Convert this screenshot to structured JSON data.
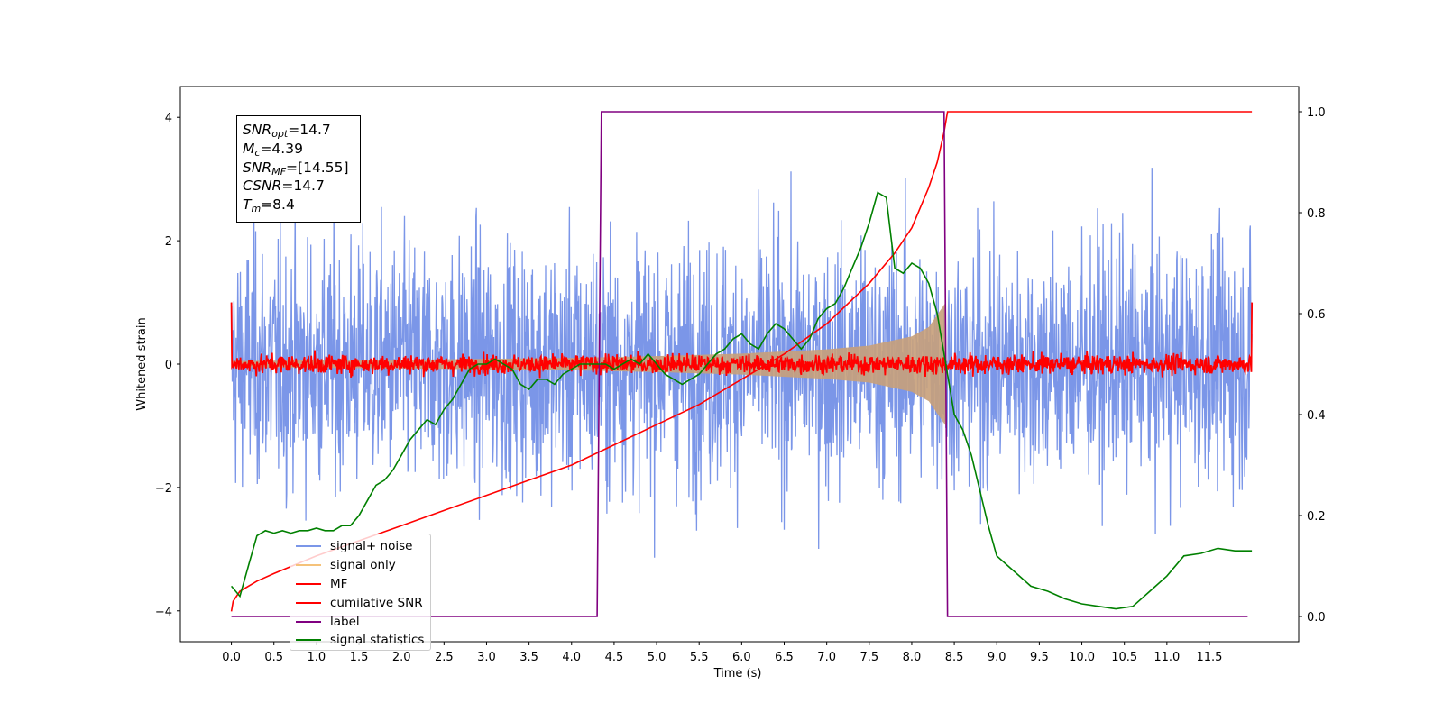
{
  "chart_data": {
    "type": "line",
    "xlabel": "Time (s)",
    "ylabel": "Whitened strain",
    "xlim": [
      -0.6,
      12.55
    ],
    "ylim": [
      -4.5,
      4.5
    ],
    "y2lim": [
      -0.05,
      1.05
    ],
    "xticks": [
      "0.0",
      "0.5",
      "1.0",
      "1.5",
      "2.0",
      "2.5",
      "3.0",
      "3.5",
      "4.0",
      "4.5",
      "5.0",
      "5.5",
      "6.0",
      "6.5",
      "7.0",
      "7.5",
      "8.0",
      "8.5",
      "9.0",
      "9.5",
      "10.0",
      "10.5",
      "11.0",
      "11.5"
    ],
    "yticks": [
      "−4",
      "−2",
      "0",
      "2",
      "4"
    ],
    "y2ticks": [
      "0.0",
      "0.2",
      "0.4",
      "0.6",
      "0.8",
      "1.0"
    ],
    "legend_position": "lower-left",
    "stats_box": {
      "snr_opt": {
        "base": "SNR",
        "sub": "opt",
        "value": "=14.7"
      },
      "mc": {
        "base": "M",
        "sub": "c",
        "value": "=4.39"
      },
      "snr_mf": {
        "base": "SNR",
        "sub": "MF",
        "value": "=[14.55]"
      },
      "csnr": {
        "base": "CSNR",
        "sub": "",
        "value": "=14.7"
      },
      "tm": {
        "base": "T",
        "sub": "m",
        "value": "=8.4"
      }
    },
    "series": [
      {
        "name": "signal+ noise",
        "color": "#7b96e8",
        "axis": "left",
        "description_values": {
          "x_range": [
            0.0,
            12.0
          ],
          "y_spread": 1.0,
          "peak_min": -3.7,
          "peak_max": 3.5
        }
      },
      {
        "name": "signal only",
        "color": "#c8a07a",
        "axis": "left",
        "envelope": {
          "x": [
            0.0,
            2.0,
            4.0,
            5.0,
            6.0,
            7.0,
            7.5,
            8.0,
            8.2,
            8.4
          ],
          "y": [
            0.05,
            0.07,
            0.1,
            0.13,
            0.17,
            0.24,
            0.3,
            0.45,
            0.6,
            1.0
          ]
        }
      },
      {
        "name": "MF",
        "color": "#ff0000",
        "axis": "left",
        "description_values": {
          "x_range": [
            0.0,
            12.0
          ],
          "y_spread": 0.08,
          "edge_value": 1.0
        }
      },
      {
        "name": "cumilative SNR",
        "color": "#ff0000",
        "axis": "right",
        "x": [
          0.0,
          0.02,
          0.1,
          0.3,
          0.5,
          1.0,
          1.5,
          2.0,
          2.5,
          3.0,
          3.5,
          4.0,
          4.5,
          5.0,
          5.5,
          6.0,
          6.5,
          7.0,
          7.5,
          7.8,
          8.0,
          8.1,
          8.2,
          8.3,
          8.38,
          8.42,
          12.0
        ],
        "y": [
          0.01,
          0.03,
          0.05,
          0.07,
          0.085,
          0.12,
          0.15,
          0.18,
          0.21,
          0.24,
          0.27,
          0.3,
          0.34,
          0.38,
          0.42,
          0.47,
          0.52,
          0.58,
          0.66,
          0.72,
          0.77,
          0.81,
          0.85,
          0.9,
          0.96,
          1.0,
          1.0
        ]
      },
      {
        "name": "label",
        "color": "#800080",
        "axis": "right",
        "x": [
          0.0,
          4.3,
          4.35,
          8.38,
          8.42,
          11.95
        ],
        "y": [
          0.0,
          0.0,
          1.0,
          1.0,
          0.0,
          0.0
        ]
      },
      {
        "name": "signal statistics",
        "color": "#008000",
        "axis": "right",
        "x": [
          0.0,
          0.1,
          0.2,
          0.3,
          0.4,
          0.5,
          0.6,
          0.7,
          0.8,
          0.9,
          1.0,
          1.1,
          1.2,
          1.3,
          1.4,
          1.5,
          1.6,
          1.7,
          1.8,
          1.9,
          2.0,
          2.1,
          2.2,
          2.3,
          2.4,
          2.5,
          2.6,
          2.7,
          2.8,
          2.9,
          3.0,
          3.1,
          3.2,
          3.3,
          3.4,
          3.5,
          3.6,
          3.7,
          3.8,
          3.9,
          4.0,
          4.1,
          4.2,
          4.3,
          4.4,
          4.5,
          4.6,
          4.7,
          4.8,
          4.9,
          5.0,
          5.1,
          5.2,
          5.3,
          5.4,
          5.5,
          5.6,
          5.7,
          5.8,
          5.9,
          6.0,
          6.1,
          6.2,
          6.3,
          6.4,
          6.5,
          6.6,
          6.7,
          6.8,
          6.9,
          7.0,
          7.1,
          7.2,
          7.3,
          7.4,
          7.5,
          7.6,
          7.7,
          7.8,
          7.9,
          8.0,
          8.1,
          8.2,
          8.3,
          8.4,
          8.5,
          8.6,
          8.7,
          8.8,
          8.9,
          9.0,
          9.2,
          9.4,
          9.6,
          9.8,
          10.0,
          10.2,
          10.4,
          10.6,
          10.8,
          11.0,
          11.2,
          11.4,
          11.6,
          11.8,
          12.0
        ],
        "y": [
          0.06,
          0.04,
          0.1,
          0.16,
          0.17,
          0.165,
          0.17,
          0.165,
          0.17,
          0.17,
          0.175,
          0.17,
          0.17,
          0.18,
          0.18,
          0.2,
          0.23,
          0.26,
          0.27,
          0.29,
          0.32,
          0.35,
          0.37,
          0.39,
          0.38,
          0.41,
          0.43,
          0.46,
          0.49,
          0.5,
          0.5,
          0.51,
          0.5,
          0.49,
          0.46,
          0.45,
          0.47,
          0.47,
          0.46,
          0.48,
          0.49,
          0.5,
          0.5,
          0.5,
          0.5,
          0.49,
          0.5,
          0.51,
          0.5,
          0.52,
          0.5,
          0.48,
          0.47,
          0.46,
          0.47,
          0.48,
          0.5,
          0.52,
          0.53,
          0.55,
          0.56,
          0.54,
          0.53,
          0.56,
          0.58,
          0.57,
          0.55,
          0.53,
          0.55,
          0.59,
          0.61,
          0.62,
          0.65,
          0.69,
          0.73,
          0.78,
          0.84,
          0.83,
          0.69,
          0.68,
          0.7,
          0.69,
          0.66,
          0.6,
          0.5,
          0.4,
          0.37,
          0.32,
          0.25,
          0.18,
          0.12,
          0.09,
          0.06,
          0.05,
          0.035,
          0.025,
          0.02,
          0.015,
          0.02,
          0.05,
          0.08,
          0.12,
          0.125,
          0.135,
          0.13,
          0.13
        ]
      }
    ]
  }
}
